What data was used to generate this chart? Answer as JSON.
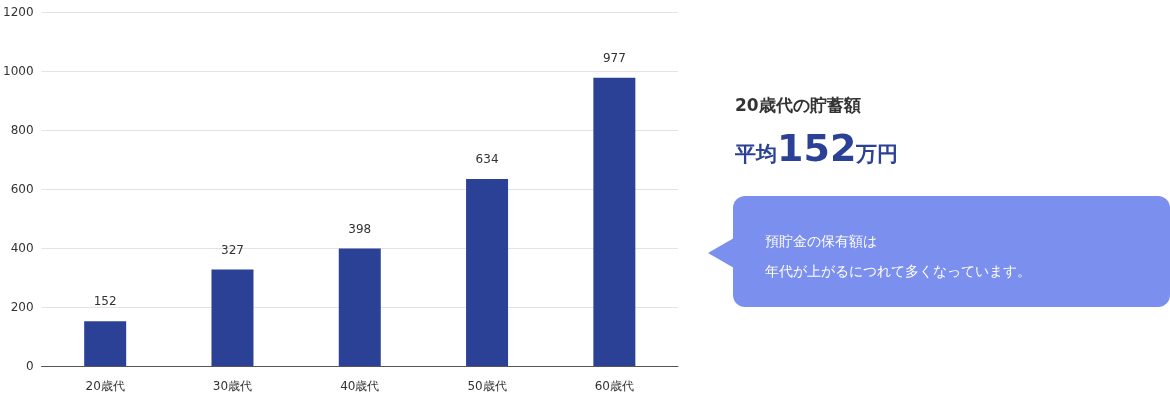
{
  "chart_data": {
    "type": "bar",
    "categories": [
      "20歳代",
      "30歳代",
      "40歳代",
      "50歳代",
      "60歳代"
    ],
    "values": [
      152,
      327,
      398,
      634,
      977
    ],
    "color": "#2b4196",
    "ylim": [
      0,
      1200
    ],
    "yticks": [
      0,
      200,
      400,
      600,
      800,
      1000,
      1200
    ],
    "grid": "y",
    "data_labels": true,
    "annotations": [
      "20歳代の貯蓄額",
      "平均152万円",
      "預貯金の保有額は",
      "年代が上がるにつれて多くなっています。"
    ]
  }
}
